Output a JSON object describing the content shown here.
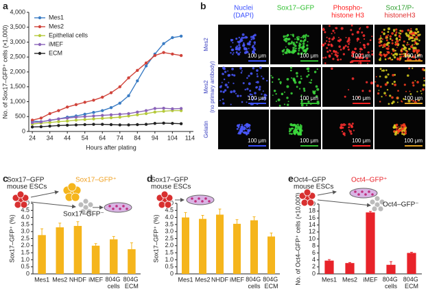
{
  "chart_data": [
    {
      "type": "line",
      "label": "a",
      "x_label": "Hours after plating",
      "y_label": "No. of Sox17–GFP⁺ cells (×1,000)",
      "x": [
        24,
        29,
        34,
        39,
        44,
        49,
        54,
        59,
        64,
        69,
        74,
        79,
        84,
        89,
        94,
        99,
        104,
        109
      ],
      "xlim": [
        22,
        116
      ],
      "xticks": [
        24,
        34,
        44,
        54,
        64,
        74,
        84,
        94,
        104,
        114
      ],
      "ylim": [
        0,
        4000
      ],
      "yticks": [
        0,
        500,
        {
          "value": 1000,
          "label": "1,000"
        },
        {
          "value": 1500,
          "label": "1,500"
        },
        {
          "value": 2000,
          "label": "2,000"
        },
        {
          "value": 2500,
          "label": "2,500"
        },
        {
          "value": 3000,
          "label": "3,000"
        },
        {
          "value": 3500,
          "label": "3,500"
        },
        {
          "value": 4000,
          "label": "4,000"
        }
      ],
      "legend": "upper left",
      "series": [
        {
          "name": "Mes1",
          "color": "#3a7cc4",
          "values": [
            350,
            330,
            370,
            420,
            480,
            520,
            580,
            640,
            700,
            800,
            950,
            1200,
            1700,
            2200,
            2600,
            2950,
            3150,
            3200
          ]
        },
        {
          "name": "Mes2",
          "color": "#d0433a",
          "values": [
            380,
            450,
            600,
            700,
            820,
            900,
            980,
            1050,
            1150,
            1300,
            1500,
            1800,
            2050,
            2300,
            2550,
            2650,
            2600,
            2550
          ]
        },
        {
          "name": "Epithelial cells",
          "color": "#b5c93a",
          "values": [
            250,
            280,
            300,
            330,
            350,
            380,
            400,
            420,
            440,
            460,
            480,
            520,
            560,
            600,
            650,
            680,
            700,
            700
          ]
        },
        {
          "name": "iMEF",
          "color": "#8a63b8",
          "values": [
            300,
            320,
            380,
            420,
            450,
            480,
            500,
            520,
            540,
            560,
            580,
            600,
            650,
            700,
            770,
            780,
            760,
            770
          ]
        },
        {
          "name": "ECM",
          "color": "#222222",
          "values": [
            150,
            160,
            180,
            200,
            210,
            220,
            230,
            240,
            240,
            230,
            220,
            220,
            230,
            240,
            270,
            280,
            270,
            260
          ]
        }
      ]
    },
    {
      "type": "bar",
      "label": "c",
      "y_label": "Sox17–GFP⁺ (%)",
      "color": "#f5b51c",
      "categories": [
        "Mes1",
        "Mes2",
        "NHDF",
        "iMEF",
        "804G cells",
        "804G ECM"
      ],
      "values": [
        2.75,
        3.3,
        3.4,
        2.0,
        2.45,
        1.75
      ],
      "errors": [
        0.45,
        0.3,
        0.3,
        0.15,
        0.2,
        0.45
      ],
      "ylim": [
        0,
        5
      ],
      "yticks": [
        0,
        0.5,
        {
          "value": 1,
          "label": "1.0"
        },
        1.5,
        {
          "value": 2,
          "label": "2.0"
        },
        2.5,
        {
          "value": 3,
          "label": "3.0"
        },
        3.5,
        {
          "value": 4,
          "label": "4.0"
        },
        4.5,
        {
          "value": 5,
          "label": "5.0"
        }
      ],
      "annotations": [
        [
          "Sox17–GFP",
          "mouse ESCs"
        ],
        [
          "Sox17–GFP⁺"
        ],
        [
          "Sox17–GFP⁻"
        ]
      ]
    },
    {
      "type": "bar",
      "label": "d",
      "y_label": "Sox17–GFP⁺ (%)",
      "color": "#f5b51c",
      "categories": [
        "Mes1",
        "Mes2",
        "NHDF",
        "iMEF",
        "804G cells",
        "804G ECM"
      ],
      "values": [
        4.0,
        3.9,
        4.2,
        3.55,
        3.8,
        2.65
      ],
      "errors": [
        0.35,
        0.25,
        0.4,
        0.3,
        0.25,
        0.25
      ],
      "ylim": [
        0,
        5
      ],
      "yticks": [
        0,
        0.5,
        {
          "value": 1,
          "label": "1.0"
        },
        1.5,
        {
          "value": 2,
          "label": "2.0"
        },
        2.5,
        {
          "value": 3,
          "label": "3.0"
        },
        3.5,
        {
          "value": 4,
          "label": "4.0"
        },
        4.5,
        {
          "value": 5,
          "label": "5.0"
        }
      ],
      "annotations": [
        [
          "Sox17–GFP",
          "mouse ESCs"
        ]
      ]
    },
    {
      "type": "bar",
      "label": "e",
      "y_label": "No. of  Oct4–GFP⁺ cells (×10,000)",
      "color": "#e8232a",
      "categories": [
        "Mes1",
        "Mes2",
        "iMEF",
        "804G cells",
        "804G ECM"
      ],
      "values": [
        3.8,
        3.1,
        17.6,
        2.6,
        6.0
      ],
      "errors": [
        0.3,
        0.15,
        0.3,
        0.9,
        0.2
      ],
      "ylim": [
        0,
        20
      ],
      "yticks": [
        0,
        2,
        4,
        6,
        8,
        10,
        12,
        14,
        16,
        18,
        20
      ],
      "annotations": [
        [
          "Oct4–GFP",
          "mouse ESCs"
        ],
        [
          "Oct4–GFP⁺"
        ],
        [
          "Oct4–GFP⁻"
        ]
      ]
    }
  ],
  "panel_b": {
    "label": "b",
    "columns": [
      [
        "Nuclei",
        "(DAPI)"
      ],
      [
        "Sox17–GFP"
      ],
      [
        "Phospho-",
        "histone H3"
      ],
      [
        "Sox17/P-",
        "histoneH3"
      ]
    ],
    "rows": [
      [
        "Mes2"
      ],
      [
        "Mes2",
        "(no primary antibody)"
      ],
      [
        "Gelatin"
      ]
    ],
    "scale_bar": "100 μm"
  }
}
